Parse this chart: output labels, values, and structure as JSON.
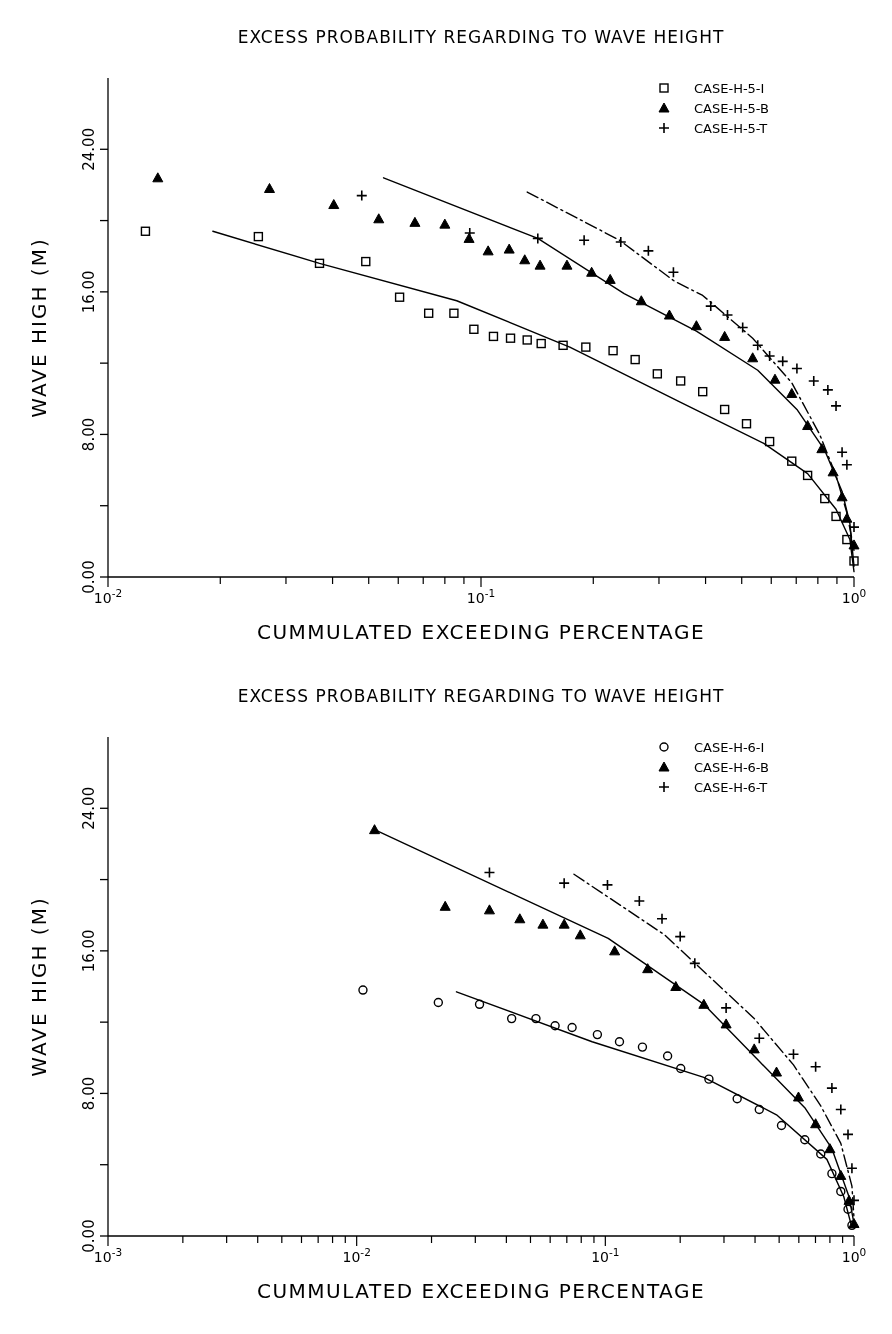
{
  "chart_data": [
    {
      "type": "scatter",
      "title": "EXCESS PROBABILITY REGARDING TO WAVE HEIGHT",
      "xlabel": "CUMMULATED EXCEEDING PERCENTAGE",
      "ylabel": "WAVE HIGH (M)",
      "log": "x",
      "grid": false,
      "legend": "top right",
      "xlim": [
        0.01,
        1
      ],
      "ylim": [
        0,
        28
      ],
      "xticks": [
        {
          "value": 0.01,
          "label": "10$^{-2}$"
        },
        {
          "value": 0.02,
          "label": null
        },
        {
          "value": 0.03,
          "label": null
        },
        {
          "value": 0.04,
          "label": null
        },
        {
          "value": 0.05,
          "label": null
        },
        {
          "value": 0.06,
          "label": null
        },
        {
          "value": 0.07,
          "label": null
        },
        {
          "value": 0.08,
          "label": null
        },
        {
          "value": 0.09,
          "label": null
        },
        {
          "value": 0.1,
          "label": "10$^{-1}$"
        },
        {
          "value": 0.2,
          "label": null
        },
        {
          "value": 0.3,
          "label": null
        },
        {
          "value": 0.4,
          "label": null
        },
        {
          "value": 0.5,
          "label": null
        },
        {
          "value": 0.6,
          "label": null
        },
        {
          "value": 0.7,
          "label": null
        },
        {
          "value": 0.8,
          "label": null
        },
        {
          "value": 0.9,
          "label": null
        },
        {
          "value": 1,
          "label": "10$^{0}$"
        }
      ],
      "yticks": [
        {
          "value": 0,
          "label": "0.00"
        },
        {
          "value": 4,
          "label": null
        },
        {
          "value": 8,
          "label": "8.00"
        },
        {
          "value": 12,
          "label": null
        },
        {
          "value": 16,
          "label": "16.00"
        },
        {
          "value": 20,
          "label": null
        },
        {
          "value": 24,
          "label": "24.00"
        }
      ],
      "series": [
        {
          "name": "CASE-H-5-I",
          "marker": "square",
          "color": "#000000",
          "x": [
            0.0126,
            0.0253,
            0.0369,
            0.0491,
            0.0605,
            0.0724,
            0.0846,
            0.0957,
            0.108,
            0.12,
            0.133,
            0.145,
            0.166,
            0.191,
            0.226,
            0.259,
            0.297,
            0.343,
            0.393,
            0.45,
            0.515,
            0.594,
            0.681,
            0.751,
            0.835,
            0.895,
            0.957,
            1.0
          ],
          "values": [
            19.4,
            19.1,
            17.6,
            17.7,
            15.7,
            14.8,
            14.8,
            13.9,
            13.5,
            13.4,
            13.3,
            13.1,
            13.0,
            12.9,
            12.7,
            12.2,
            11.4,
            11.0,
            10.4,
            9.4,
            8.6,
            7.6,
            6.5,
            5.7,
            4.4,
            3.4,
            2.1,
            0.9
          ]
        },
        {
          "name": "CASE-H-5-B",
          "marker": "triangle",
          "color": "#000000",
          "x": [
            0.0136,
            0.0271,
            0.0403,
            0.0532,
            0.0665,
            0.08,
            0.0929,
            0.1045,
            0.119,
            0.131,
            0.144,
            0.17,
            0.198,
            0.222,
            0.269,
            0.32,
            0.378,
            0.45,
            0.535,
            0.614,
            0.681,
            0.751,
            0.82,
            0.879,
            0.929,
            0.957,
            1.0
          ],
          "values": [
            22.4,
            21.8,
            20.9,
            20.1,
            19.9,
            19.8,
            19.0,
            18.3,
            18.4,
            17.8,
            17.5,
            17.5,
            17.1,
            16.7,
            15.5,
            14.7,
            14.1,
            13.5,
            12.3,
            11.1,
            10.3,
            8.5,
            7.2,
            5.9,
            4.5,
            3.3,
            1.8
          ]
        },
        {
          "name": "CASE-H-5-T",
          "marker": "cross",
          "color": "#000000",
          "x": [
            0.0479,
            0.0933,
            0.142,
            0.189,
            0.237,
            0.281,
            0.328,
            0.413,
            0.458,
            0.503,
            0.552,
            0.594,
            0.644,
            0.703,
            0.78,
            0.851,
            0.895,
            0.929,
            0.957,
            1.0
          ],
          "values": [
            21.4,
            19.3,
            19.0,
            18.9,
            18.8,
            18.3,
            17.1,
            15.2,
            14.7,
            14.0,
            13.0,
            12.4,
            12.1,
            11.7,
            11.0,
            10.5,
            9.6,
            7.0,
            6.3,
            2.8
          ]
        },
        {
          "type": "line",
          "line_style": "solid",
          "color": "#000000",
          "x": [
            0.0191,
            0.0369,
            0.0861,
            0.173,
            0.343,
            0.573,
            0.751,
            0.895,
            0.975,
            1.0
          ],
          "values": [
            19.4,
            17.6,
            15.5,
            12.9,
            9.8,
            7.5,
            5.8,
            3.8,
            2.1,
            0.3
          ]
        },
        {
          "type": "line",
          "line_style": "solid",
          "color": "#000000",
          "x": [
            0.0548,
            0.142,
            0.242,
            0.378,
            0.552,
            0.703,
            0.835,
            0.929,
            0.975,
            1.0
          ],
          "values": [
            22.4,
            19.0,
            15.9,
            13.8,
            11.6,
            9.4,
            7.1,
            4.8,
            3.0,
            0.6
          ]
        },
        {
          "type": "line",
          "line_style": "dashed",
          "color": "#000000",
          "x": [
            0.133,
            0.235,
            0.33,
            0.393,
            0.535,
            0.681,
            0.809,
            0.895,
            0.957,
            1.0
          ],
          "values": [
            21.6,
            18.9,
            16.6,
            15.8,
            13.4,
            10.9,
            8.0,
            5.7,
            3.6,
            1.5
          ]
        }
      ]
    },
    {
      "type": "scatter",
      "title": "EXCESS PROBABILITY REGARDING TO WAVE HEIGHT",
      "xlabel": "CUMMULATED EXCEEDING PERCENTAGE",
      "ylabel": "WAVE HIGH (M)",
      "log": "x",
      "grid": false,
      "legend": "top right",
      "xlim": [
        0.001,
        1
      ],
      "ylim": [
        0,
        28
      ],
      "xticks": [
        {
          "value": 0.001,
          "label": "10$^{-3}$"
        },
        {
          "value": 0.002,
          "label": null
        },
        {
          "value": 0.003,
          "label": null
        },
        {
          "value": 0.004,
          "label": null
        },
        {
          "value": 0.005,
          "label": null
        },
        {
          "value": 0.006,
          "label": null
        },
        {
          "value": 0.007,
          "label": null
        },
        {
          "value": 0.008,
          "label": null
        },
        {
          "value": 0.009,
          "label": null
        },
        {
          "value": 0.01,
          "label": "10$^{-2}$"
        },
        {
          "value": 0.02,
          "label": null
        },
        {
          "value": 0.03,
          "label": null
        },
        {
          "value": 0.04,
          "label": null
        },
        {
          "value": 0.05,
          "label": null
        },
        {
          "value": 0.06,
          "label": null
        },
        {
          "value": 0.07,
          "label": null
        },
        {
          "value": 0.08,
          "label": null
        },
        {
          "value": 0.09,
          "label": null
        },
        {
          "value": 0.1,
          "label": "10$^{-1}$"
        },
        {
          "value": 0.2,
          "label": null
        },
        {
          "value": 0.3,
          "label": null
        },
        {
          "value": 0.4,
          "label": null
        },
        {
          "value": 0.5,
          "label": null
        },
        {
          "value": 0.6,
          "label": null
        },
        {
          "value": 0.7,
          "label": null
        },
        {
          "value": 0.8,
          "label": null
        },
        {
          "value": 0.9,
          "label": null
        },
        {
          "value": 1,
          "label": "10$^{0}$"
        }
      ],
      "yticks": [
        {
          "value": 0,
          "label": "0.00"
        },
        {
          "value": 4,
          "label": null
        },
        {
          "value": 8,
          "label": "8.00"
        },
        {
          "value": 12,
          "label": null
        },
        {
          "value": 16,
          "label": "16.00"
        },
        {
          "value": 20,
          "label": null
        },
        {
          "value": 24,
          "label": "24.00"
        }
      ],
      "series": [
        {
          "name": "CASE-H-6-I",
          "marker": "circle",
          "color": "#000000",
          "x": [
            0.0106,
            0.0213,
            0.0312,
            0.042,
            0.0526,
            0.0628,
            0.0735,
            0.0929,
            0.114,
            0.141,
            0.178,
            0.201,
            0.261,
            0.339,
            0.416,
            0.511,
            0.634,
            0.735,
            0.815,
            0.885,
            0.946,
            0.981
          ],
          "values": [
            13.8,
            13.1,
            13.0,
            12.2,
            12.2,
            11.8,
            11.7,
            11.3,
            10.9,
            10.6,
            10.1,
            9.4,
            8.8,
            7.7,
            7.1,
            6.2,
            5.4,
            4.6,
            3.5,
            2.5,
            1.5,
            0.6
          ]
        },
        {
          "name": "CASE-H-6-B",
          "marker": "triangle",
          "color": "#000000",
          "x": [
            0.0118,
            0.0227,
            0.0342,
            0.0453,
            0.0561,
            0.0683,
            0.0793,
            0.109,
            0.148,
            0.192,
            0.249,
            0.306,
            0.397,
            0.488,
            0.598,
            0.701,
            0.8,
            0.885,
            0.955,
            1.0
          ],
          "values": [
            22.8,
            18.5,
            18.3,
            17.8,
            17.5,
            17.5,
            16.9,
            16.0,
            15.0,
            14.0,
            13.0,
            11.9,
            10.5,
            9.2,
            7.8,
            6.3,
            4.9,
            3.4,
            2.0,
            0.7
          ]
        },
        {
          "name": "CASE-H-6-T",
          "marker": "cross",
          "color": "#000000",
          "x": [
            0.0342,
            0.0683,
            0.102,
            0.137,
            0.169,
            0.2,
            0.229,
            0.306,
            0.416,
            0.571,
            0.701,
            0.815,
            0.885,
            0.946,
            0.981,
            1.0
          ],
          "values": [
            20.4,
            19.8,
            19.7,
            18.8,
            17.8,
            16.8,
            15.3,
            12.8,
            11.1,
            10.2,
            9.5,
            8.3,
            7.1,
            5.7,
            3.8,
            2.0
          ]
        },
        {
          "type": "line",
          "line_style": "solid",
          "color": "#000000",
          "x": [
            0.0252,
            0.0885,
            0.249,
            0.488,
            0.778,
            0.91,
            0.98
          ],
          "values": [
            13.7,
            10.9,
            8.9,
            6.8,
            4.3,
            2.2,
            0.5
          ]
        },
        {
          "type": "line",
          "line_style": "solid",
          "color": "#000000",
          "x": [
            0.0118,
            0.1027,
            0.249,
            0.416,
            0.634,
            0.815,
            0.955,
            1.0
          ],
          "values": [
            22.8,
            16.7,
            13.0,
            9.8,
            7.2,
            4.9,
            2.2,
            0.7
          ]
        },
        {
          "type": "line",
          "line_style": "dashed",
          "color": "#000000",
          "x": [
            0.0748,
            0.173,
            0.397,
            0.571,
            0.735,
            0.885,
            0.981,
            1.0
          ],
          "values": [
            20.3,
            16.9,
            12.2,
            9.6,
            7.3,
            5.2,
            2.8,
            1.0
          ]
        }
      ]
    }
  ]
}
